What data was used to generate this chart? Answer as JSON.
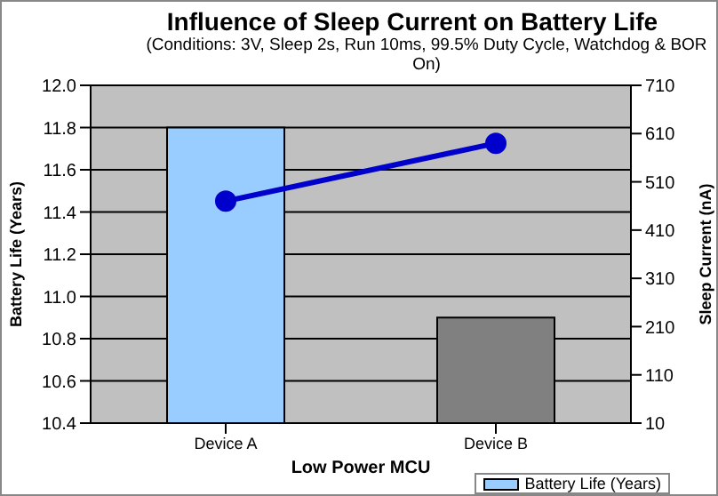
{
  "chart_data": {
    "type": "bar",
    "title": "Influence of Sleep Current on Battery Life",
    "subtitle": "(Conditions: 3V, Sleep 2s, Run 10ms, 99.5% Duty Cycle, Watchdog & BOR On)",
    "xlabel": "Low Power MCU",
    "ylabel": "Battery Life (Years)",
    "y2label": "Sleep Current (nA)",
    "categories": [
      "Device A",
      "Device B"
    ],
    "series": [
      {
        "name": "Battery Life (Years)",
        "color": "#99ccff",
        "colors": [
          "#99ccff",
          "#808080"
        ],
        "values": [
          11.8,
          10.9
        ]
      },
      {
        "type": "line",
        "axis": "y2",
        "color": "#0000cc",
        "values": [
          470,
          590
        ]
      }
    ],
    "ylim": [
      10.4,
      12.0
    ],
    "yticks": [
      {
        "value": 10.4,
        "label": "10.4"
      },
      {
        "value": 10.6,
        "label": "10.6"
      },
      {
        "value": 10.8,
        "label": "10.8"
      },
      {
        "value": 11,
        "label": "11.0"
      },
      {
        "value": 11.2,
        "label": "11.2"
      },
      {
        "value": 11.4,
        "label": "11.4"
      },
      {
        "value": 11.6,
        "label": "11.6"
      },
      {
        "value": 11.8,
        "label": "11.8"
      },
      {
        "value": 12,
        "label": "12.0"
      }
    ],
    "y2lim": [
      10,
      710
    ],
    "y2ticks": [
      10,
      110,
      210,
      310,
      410,
      510,
      610,
      710
    ],
    "grid": "y",
    "legend": "bottom",
    "marker": "circle",
    "line_style": "solid"
  }
}
